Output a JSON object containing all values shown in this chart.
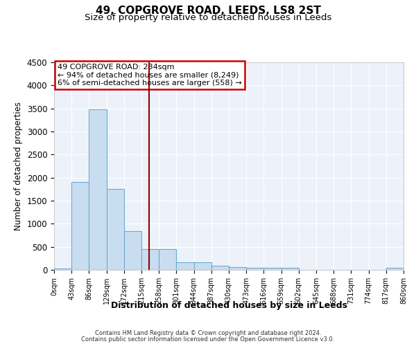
{
  "title1": "49, COPGROVE ROAD, LEEDS, LS8 2ST",
  "title2": "Size of property relative to detached houses in Leeds",
  "xlabel": "Distribution of detached houses by size in Leeds",
  "ylabel": "Number of detached properties",
  "bin_labels": [
    "0sqm",
    "43sqm",
    "86sqm",
    "129sqm",
    "172sqm",
    "215sqm",
    "258sqm",
    "301sqm",
    "344sqm",
    "387sqm",
    "430sqm",
    "473sqm",
    "516sqm",
    "559sqm",
    "602sqm",
    "645sqm",
    "688sqm",
    "731sqm",
    "774sqm",
    "817sqm",
    "860sqm"
  ],
  "bin_edges": [
    0,
    43,
    86,
    129,
    172,
    215,
    258,
    301,
    344,
    387,
    430,
    473,
    516,
    559,
    602,
    645,
    688,
    731,
    774,
    817,
    860
  ],
  "bar_heights": [
    30,
    1900,
    3480,
    1750,
    840,
    450,
    450,
    165,
    165,
    85,
    55,
    45,
    45,
    45,
    0,
    0,
    0,
    0,
    0,
    45
  ],
  "bar_color": "#c9ddf0",
  "bar_edge_color": "#6aaad4",
  "property_size": 234,
  "annotation_line1": "49 COPGROVE ROAD: 234sqm",
  "annotation_line2": "← 94% of detached houses are smaller (8,249)",
  "annotation_line3": "6% of semi-detached houses are larger (558) →",
  "vline_color": "#8b0000",
  "annotation_box_edgecolor": "#cc0000",
  "ylim": [
    0,
    4500
  ],
  "yticks": [
    0,
    500,
    1000,
    1500,
    2000,
    2500,
    3000,
    3500,
    4000,
    4500
  ],
  "bg_color": "#edf2fa",
  "grid_color": "#ffffff",
  "footer1": "Contains HM Land Registry data © Crown copyright and database right 2024.",
  "footer2": "Contains public sector information licensed under the Open Government Licence v3.0.",
  "title1_fontsize": 11,
  "title2_fontsize": 9.5
}
